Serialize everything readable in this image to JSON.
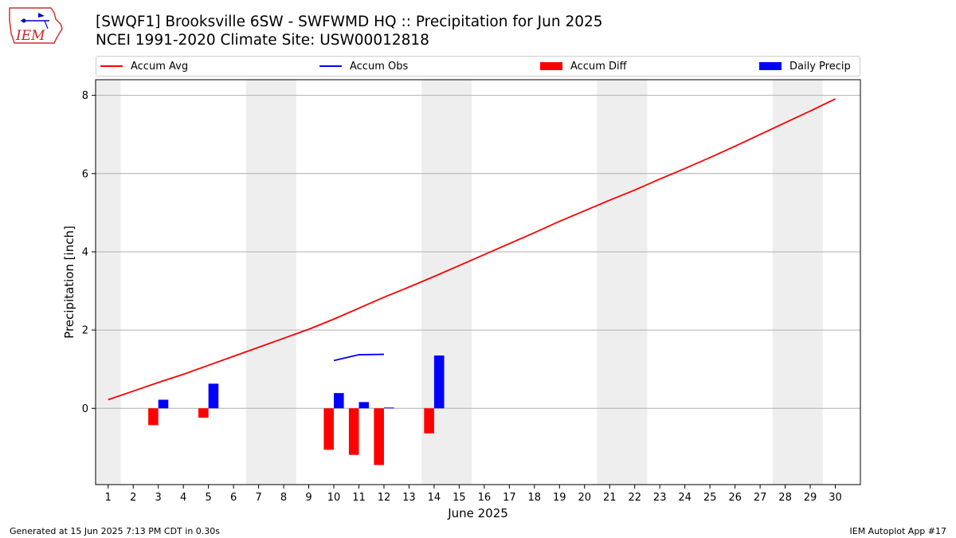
{
  "header": {
    "title_line1": "[SWQF1] Brooksville 6SW - SWFWMD HQ :: Precipitation for Jun 2025",
    "title_line2": "NCEI 1991-2020 Climate Site: USW00012818",
    "logo_text": "IEM"
  },
  "footer": {
    "left": "Generated at 15 Jun 2025 7:13 PM CDT in 0.30s",
    "right": "IEM Autoplot App #17"
  },
  "legend": {
    "placement": "top",
    "items": [
      {
        "label": "Accum Avg",
        "kind": "line",
        "color": "#ff0000"
      },
      {
        "label": "Accum Obs",
        "kind": "line",
        "color": "#0000ff"
      },
      {
        "label": "Accum Diff",
        "kind": "bar",
        "color": "#ff0000"
      },
      {
        "label": "Daily Precip",
        "kind": "bar",
        "color": "#0000ff"
      }
    ]
  },
  "chart_data": {
    "type": "bar",
    "title": "[SWQF1] Brooksville 6SW - SWFWMD HQ :: Precipitation for Jun 2025",
    "subtitle": "NCEI 1991-2020 Climate Site: USW00012818",
    "xlabel": "June 2025",
    "ylabel": "Precipitation [inch]",
    "xlim": [
      0.5,
      31.0
    ],
    "ylim": [
      -1.95,
      8.4
    ],
    "yticks": [
      0,
      2,
      4,
      6,
      8
    ],
    "xticks": [
      1,
      2,
      3,
      4,
      5,
      6,
      7,
      8,
      9,
      10,
      11,
      12,
      13,
      14,
      15,
      16,
      17,
      18,
      19,
      20,
      21,
      22,
      23,
      24,
      25,
      26,
      27,
      28,
      29,
      30
    ],
    "grid": "y",
    "weekend_shading": [
      [
        0.5,
        1.5
      ],
      [
        6.5,
        8.5
      ],
      [
        13.5,
        15.5
      ],
      [
        20.5,
        22.5
      ],
      [
        27.5,
        29.5
      ]
    ],
    "series": [
      {
        "name": "Accum Avg",
        "kind": "line",
        "color": "#ff0000",
        "x": [
          1,
          2,
          3,
          4,
          5,
          6,
          7,
          8,
          9,
          10,
          11,
          12,
          13,
          14,
          15,
          16,
          17,
          18,
          19,
          20,
          21,
          22,
          23,
          24,
          25,
          26,
          27,
          28,
          29,
          30
        ],
        "y": [
          0.22,
          0.44,
          0.66,
          0.87,
          1.1,
          1.33,
          1.56,
          1.79,
          2.02,
          2.28,
          2.56,
          2.84,
          3.1,
          3.37,
          3.65,
          3.93,
          4.21,
          4.49,
          4.78,
          5.05,
          5.32,
          5.58,
          5.86,
          6.13,
          6.41,
          6.7,
          7.0,
          7.3,
          7.6,
          7.91
        ]
      },
      {
        "name": "Accum Obs",
        "kind": "line",
        "color": "#0000ff",
        "x": [
          10,
          11,
          12
        ],
        "y": [
          1.22,
          1.37,
          1.38
        ]
      },
      {
        "name": "Accum Diff",
        "kind": "bar",
        "color": "#ff0000",
        "offset": -0.2,
        "x": [
          3,
          5,
          10,
          11,
          12,
          14
        ],
        "y": [
          -0.43,
          -0.24,
          -1.06,
          -1.19,
          -1.45,
          -0.64
        ]
      },
      {
        "name": "Daily Precip",
        "kind": "bar",
        "color": "#0000ff",
        "offset": 0.2,
        "x": [
          3,
          5,
          10,
          11,
          12,
          14
        ],
        "y": [
          0.22,
          0.63,
          0.39,
          0.16,
          0.02,
          1.35
        ]
      }
    ]
  }
}
